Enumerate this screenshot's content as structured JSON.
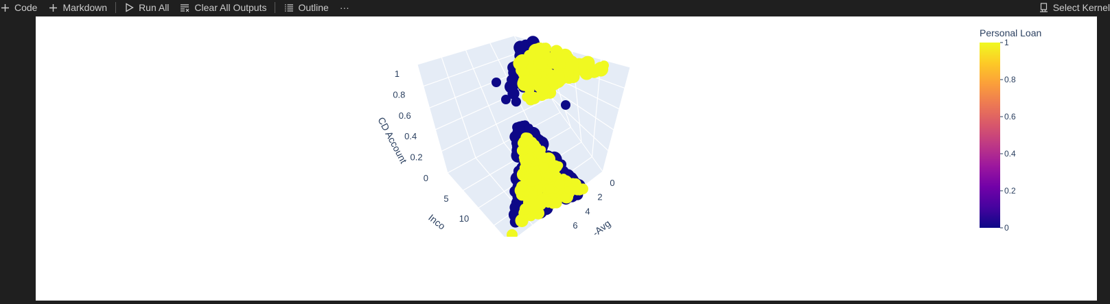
{
  "toolbar": {
    "code_label": "Code",
    "markdown_label": "Markdown",
    "run_all_label": "Run All",
    "clear_outputs_label": "Clear All Outputs",
    "outline_label": "Outline",
    "more_label": "···",
    "select_kernel_label": "Select Kernel"
  },
  "colors": {
    "low": "#0d0887",
    "high": "#f0f921",
    "axis_text": "#2a3f5f",
    "scene_bg": "#e5ecf6"
  },
  "chart_data": {
    "type": "scatter",
    "mode": "3d",
    "color_variable": "Personal Loan",
    "axes": {
      "z": {
        "label": "CD Account",
        "ticks": [
          "0",
          "0.2",
          "0.4",
          "0.6",
          "0.8",
          "1"
        ]
      },
      "y": {
        "label": "Inco",
        "ticks": [
          "5",
          "10"
        ]
      },
      "x": {
        "label": "-Avg",
        "ticks": [
          "0",
          "2",
          "4",
          "6"
        ]
      }
    },
    "colorbar": {
      "title": "Personal Loan",
      "ticks": [
        "1",
        "0.8",
        "0.6",
        "0.4",
        "0.2",
        "0"
      ],
      "range": [
        0,
        1
      ]
    },
    "series": [
      {
        "cd_account": 0,
        "personal_loan": 0
      },
      {
        "cd_account": 0,
        "personal_loan": 1
      },
      {
        "cd_account": 1,
        "personal_loan": 0
      },
      {
        "cd_account": 1,
        "personal_loan": 1
      }
    ]
  }
}
